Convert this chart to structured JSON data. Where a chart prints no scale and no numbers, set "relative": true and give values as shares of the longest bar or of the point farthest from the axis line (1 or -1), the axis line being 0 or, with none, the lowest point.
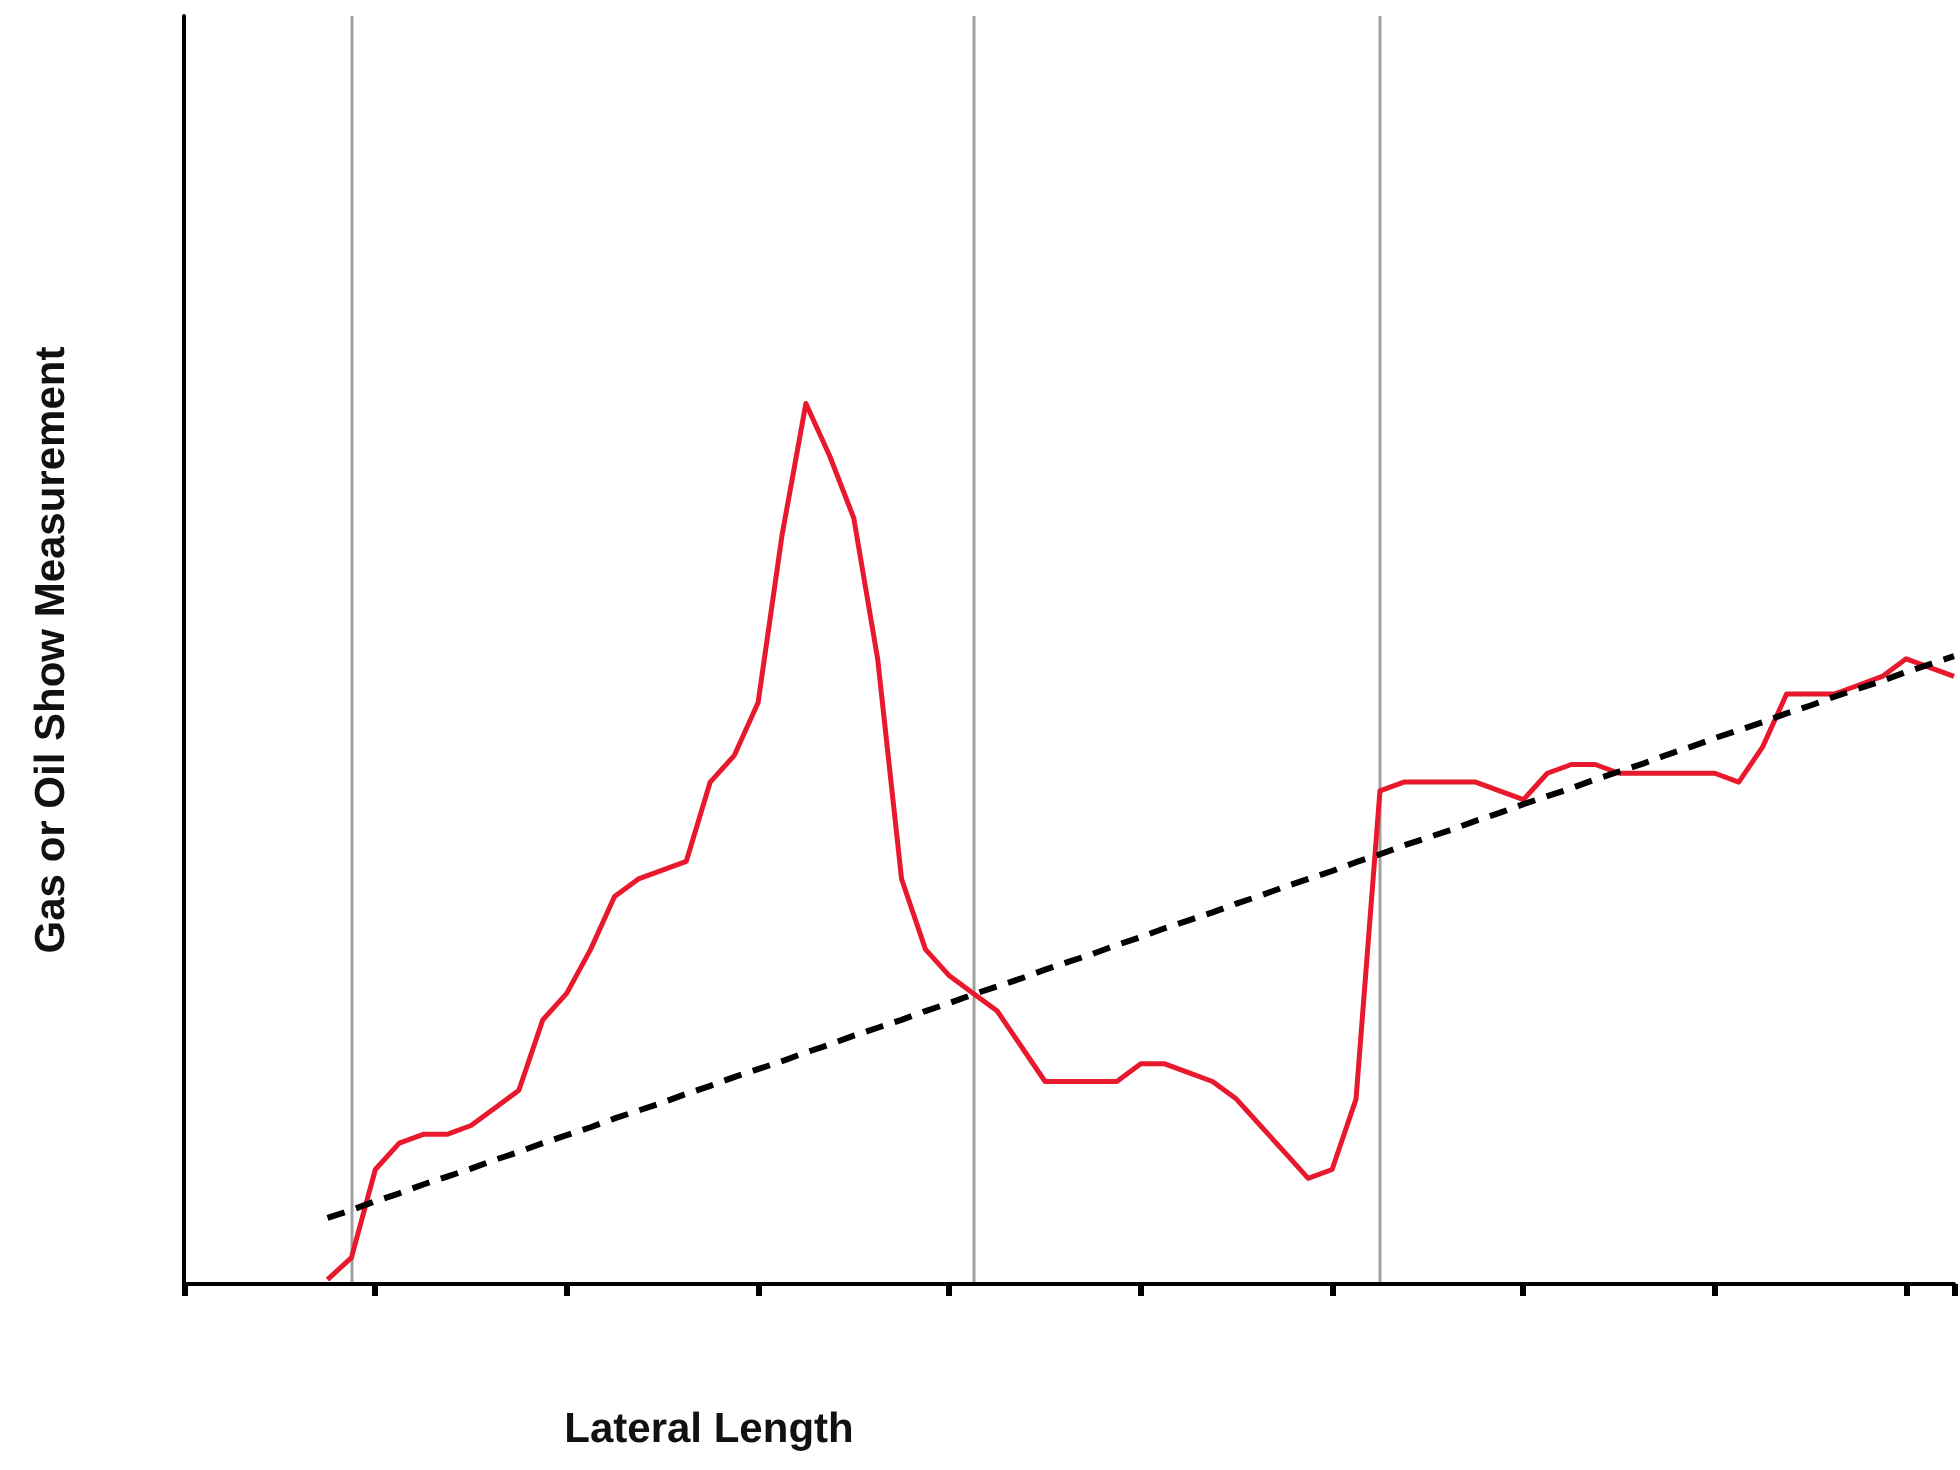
{
  "chart_data": {
    "type": "line",
    "relative": true,
    "xlabel": "Lateral Length",
    "ylabel": "Gas or Oil Show Measurement",
    "categories": [
      null,
      null,
      null,
      null,
      null,
      null,
      null,
      null,
      null,
      null,
      null,
      null,
      null,
      null,
      null,
      null,
      null,
      null,
      null,
      null,
      null,
      null,
      null,
      null,
      null,
      null,
      null,
      null,
      null,
      null,
      null,
      null,
      null,
      null,
      null,
      null,
      null,
      null,
      null,
      null,
      null,
      null,
      null,
      null,
      null,
      null,
      null,
      null,
      null,
      null,
      null,
      null,
      null,
      null,
      null,
      null,
      null,
      null,
      null,
      null,
      null,
      null,
      null,
      null,
      null,
      null,
      null,
      null,
      null,
      null,
      null,
      null,
      null,
      null,
      null
    ],
    "series": [
      {
        "color": "#e8192c",
        "line_style": "solid",
        "values": [
          null,
          null,
          null,
          null,
          null,
          null,
          0.005,
          0.03,
          0.13,
          0.16,
          0.17,
          0.17,
          0.18,
          0.2,
          0.22,
          0.3,
          0.33,
          0.38,
          0.44,
          0.46,
          0.47,
          0.48,
          0.57,
          0.6,
          0.66,
          0.85,
          1.0,
          0.94,
          0.87,
          0.71,
          0.46,
          0.38,
          0.35,
          0.33,
          0.31,
          0.27,
          0.23,
          0.23,
          0.23,
          0.23,
          0.25,
          0.25,
          0.24,
          0.23,
          0.21,
          0.18,
          0.15,
          0.12,
          0.13,
          0.21,
          0.56,
          0.57,
          0.57,
          0.57,
          0.57,
          0.56,
          0.55,
          0.58,
          0.59,
          0.59,
          0.58,
          0.58,
          0.58,
          0.58,
          0.58,
          0.57,
          0.61,
          0.67,
          0.67,
          0.67,
          0.68,
          0.69,
          0.71,
          0.7,
          0.69
        ]
      },
      {
        "color": "#000000",
        "line_style": "dashed",
        "values": [
          null,
          null,
          null,
          null,
          null,
          null,
          0.075,
          0.084,
          0.094,
          0.103,
          0.113,
          0.122,
          0.131,
          0.141,
          0.15,
          0.16,
          0.169,
          0.178,
          0.188,
          0.197,
          0.206,
          0.216,
          0.225,
          0.235,
          0.244,
          0.253,
          0.263,
          0.272,
          0.282,
          0.291,
          0.3,
          0.31,
          0.319,
          0.329,
          0.338,
          0.347,
          0.357,
          0.366,
          0.375,
          0.385,
          0.394,
          0.404,
          0.413,
          0.422,
          0.432,
          0.441,
          0.451,
          0.46,
          0.469,
          0.479,
          0.488,
          0.498,
          0.507,
          0.516,
          0.526,
          0.535,
          0.545,
          0.554,
          0.563,
          0.573,
          0.582,
          0.591,
          0.601,
          0.61,
          0.62,
          0.629,
          0.638,
          0.648,
          0.657,
          0.667,
          0.676,
          0.685,
          0.695,
          0.704,
          0.713
        ]
      }
    ],
    "marker": "none",
    "grid": "x"
  }
}
